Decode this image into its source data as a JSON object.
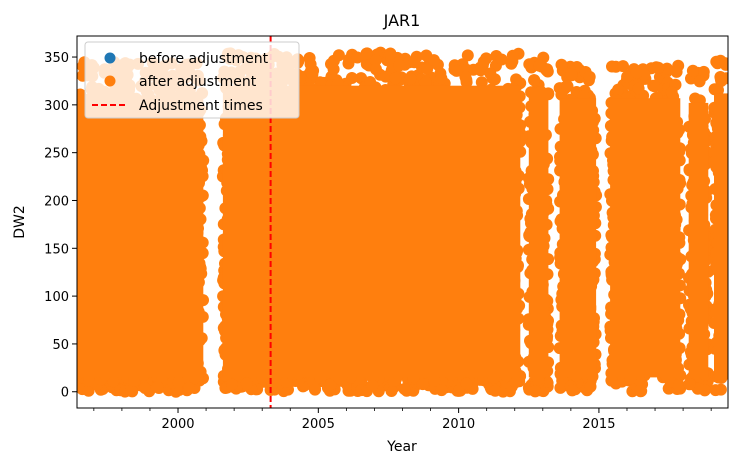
{
  "chart_data": {
    "type": "scatter",
    "title": "JAR1",
    "xlabel": "Year",
    "ylabel": "DW2",
    "xlim": [
      1996.4,
      2019.6
    ],
    "ylim": [
      -17,
      372
    ],
    "x_ticks": [
      2000,
      2005,
      2010,
      2015
    ],
    "x_tick_labels": [
      "2000",
      "2005",
      "2010",
      "2015"
    ],
    "y_ticks": [
      0,
      50,
      100,
      150,
      200,
      250,
      300,
      350
    ],
    "y_tick_labels": [
      "0",
      "50",
      "100",
      "150",
      "200",
      "250",
      "300",
      "350"
    ],
    "legend_position": "upper-left",
    "grid": false,
    "series": [
      {
        "name": "before adjustment",
        "kind": "markers",
        "color": "#1f77b4",
        "segments": []
      },
      {
        "name": "after adjustment",
        "kind": "markers",
        "color": "#ff7f0e",
        "segments": [
          {
            "x_start": 1996.4,
            "x_end": 2000.9,
            "y_min": 0,
            "y_max": 345
          },
          {
            "x_start": 2001.6,
            "x_end": 2012.2,
            "y_min": 0,
            "y_max": 355
          },
          {
            "x_start": 2012.5,
            "x_end": 2013.2,
            "y_min": 0,
            "y_max": 350
          },
          {
            "x_start": 2013.6,
            "x_end": 2014.9,
            "y_min": 0,
            "y_max": 342
          },
          {
            "x_start": 2015.4,
            "x_end": 2017.9,
            "y_min": 0,
            "y_max": 342
          },
          {
            "x_start": 2018.2,
            "x_end": 2018.9,
            "y_min": 0,
            "y_max": 337
          },
          {
            "x_start": 2019.1,
            "x_end": 2019.6,
            "y_min": 0,
            "y_max": 347
          }
        ]
      },
      {
        "name": "Adjustment times",
        "kind": "vline",
        "color": "#ff0000",
        "x": [
          2003.3
        ]
      }
    ]
  }
}
